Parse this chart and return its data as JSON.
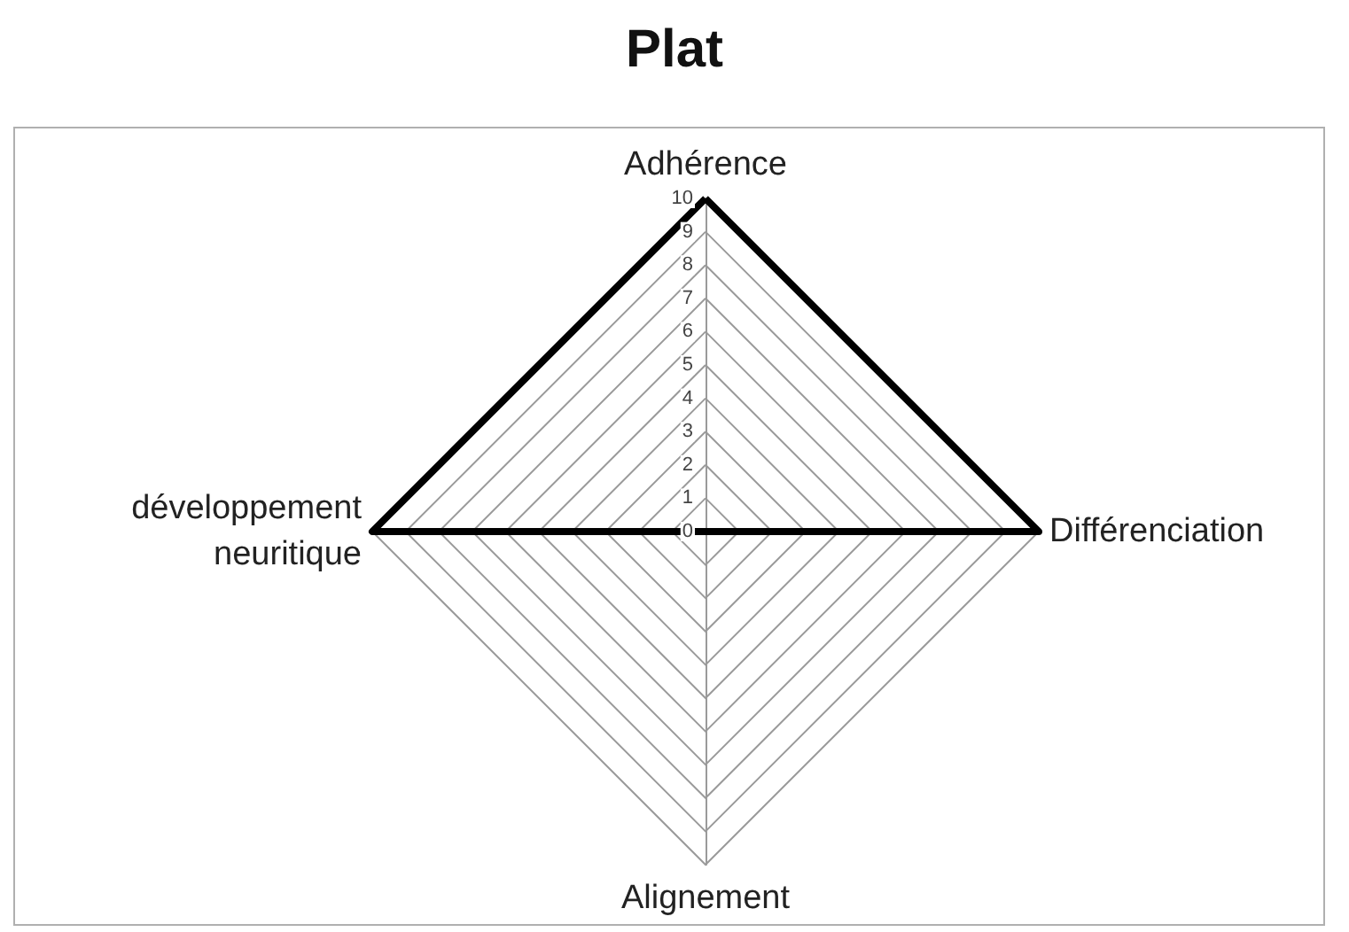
{
  "chart_data": {
    "type": "radar",
    "title": "Plat",
    "categories": [
      "Adhérence",
      "Différenciation",
      "Alignement",
      "développement neuritique"
    ],
    "series": [
      {
        "color": "#000000",
        "values": [
          10,
          10,
          0,
          10
        ]
      }
    ],
    "ylim": [
      0,
      10
    ],
    "yticks": [
      0,
      1,
      2,
      3,
      4,
      5,
      6,
      7,
      8,
      9,
      10
    ],
    "grid": true,
    "marker": "none"
  }
}
